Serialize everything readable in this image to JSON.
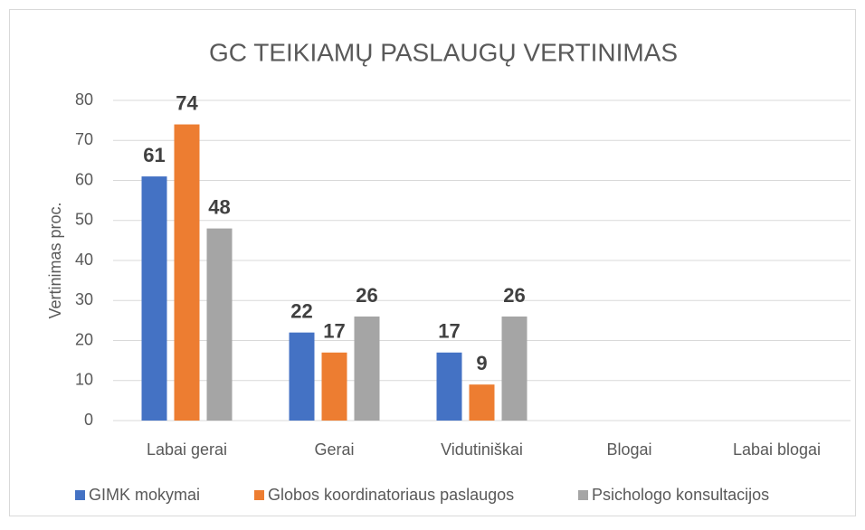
{
  "chart_data": {
    "type": "bar",
    "title": "GC TEIKIAMŲ PASLAUGŲ VERTINIMAS",
    "y_label": "Vertinimas proc.",
    "categories": [
      "Labai gerai",
      "Gerai",
      "Vidutiniškai",
      "Blogai",
      "Labai blogai"
    ],
    "series": [
      {
        "name": "GIMK mokymai",
        "color": "#4472c4",
        "values": [
          61,
          22,
          17,
          null,
          null
        ]
      },
      {
        "name": "Globos koordinatoriaus paslaugos",
        "color": "#ed7d31",
        "values": [
          74,
          17,
          9,
          null,
          null
        ]
      },
      {
        "name": "Psichologo konsultacijos",
        "color": "#a5a5a5",
        "values": [
          48,
          26,
          26,
          null,
          null
        ]
      }
    ],
    "ylim": [
      0,
      80
    ],
    "yticks": [
      0,
      10,
      20,
      30,
      40,
      50,
      60,
      70,
      80
    ],
    "grid": true,
    "legend": "bottom"
  }
}
